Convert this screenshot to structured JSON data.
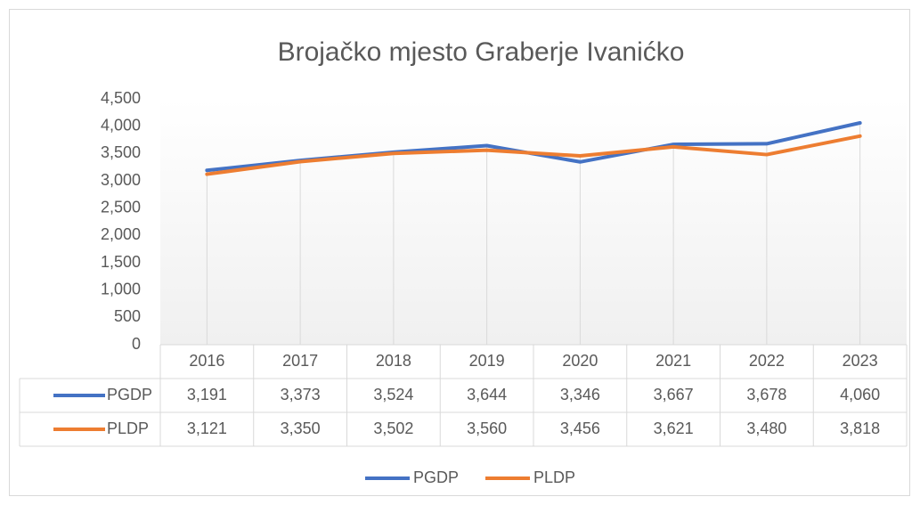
{
  "chart_data": {
    "type": "line",
    "title": "Brojačko mjesto Graberje Ivanićko",
    "categories": [
      "2016",
      "2017",
      "2018",
      "2019",
      "2020",
      "2021",
      "2022",
      "2023"
    ],
    "series": [
      {
        "name": "PGDP",
        "color": "#4472c4",
        "values": [
          3191,
          3373,
          3524,
          3644,
          3346,
          3667,
          3678,
          4060
        ],
        "value_labels": [
          "3,191",
          "3,373",
          "3,524",
          "3,644",
          "3,346",
          "3,667",
          "3,678",
          "4,060"
        ]
      },
      {
        "name": "PLDP",
        "color": "#ed7d31",
        "values": [
          3121,
          3350,
          3502,
          3560,
          3456,
          3621,
          3480,
          3818
        ],
        "value_labels": [
          "3,121",
          "3,350",
          "3,502",
          "3,560",
          "3,456",
          "3,621",
          "3,480",
          "3,818"
        ]
      }
    ],
    "ylim": [
      0,
      4500
    ],
    "yticks": [
      0,
      500,
      {
        "value": 1000,
        "label": "1,000"
      },
      {
        "value": 1500,
        "label": "1,500"
      },
      {
        "value": 2000,
        "label": "2,000"
      },
      {
        "value": 2500,
        "label": "2,500"
      },
      {
        "value": 3000,
        "label": "3,000"
      },
      {
        "value": 3500,
        "label": "3,500"
      },
      {
        "value": 4000,
        "label": "4,000"
      },
      {
        "value": 4500,
        "label": "4,500"
      }
    ],
    "legend": "bottom"
  }
}
